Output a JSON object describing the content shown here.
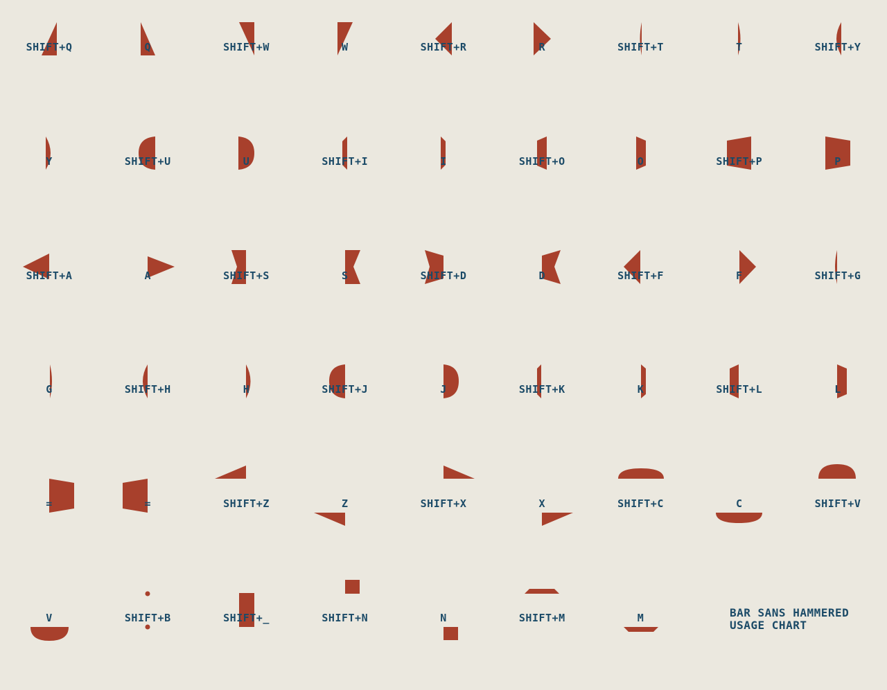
{
  "colors": {
    "background": "#ebe8df",
    "glyph_fill": "#a8402c",
    "label_text": "#1b4a67"
  },
  "title": {
    "line1": "BAR SANS HAMMERED",
    "line2": "USAGE CHART"
  },
  "cells": [
    {
      "label": "SHIFT+Q"
    },
    {
      "label": "Q"
    },
    {
      "label": "SHIFT+W"
    },
    {
      "label": "W"
    },
    {
      "label": "SHIFT+R"
    },
    {
      "label": "R"
    },
    {
      "label": "SHIFT+T"
    },
    {
      "label": "T"
    },
    {
      "label": "SHIFT+Y"
    },
    {
      "label": "Y"
    },
    {
      "label": "SHIFT+U"
    },
    {
      "label": "U"
    },
    {
      "label": "SHIFT+I"
    },
    {
      "label": "I"
    },
    {
      "label": "SHIFT+O"
    },
    {
      "label": "O"
    },
    {
      "label": "SHIFT+P"
    },
    {
      "label": "P"
    },
    {
      "label": "SHIFT+A"
    },
    {
      "label": "A"
    },
    {
      "label": "SHIFT+S"
    },
    {
      "label": "S"
    },
    {
      "label": "SHIFT+D"
    },
    {
      "label": "D"
    },
    {
      "label": "SHIFT+F"
    },
    {
      "label": "F"
    },
    {
      "label": "SHIFT+G"
    },
    {
      "label": "G"
    },
    {
      "label": "SHIFT+H"
    },
    {
      "label": "H"
    },
    {
      "label": "SHIFT+J"
    },
    {
      "label": "J"
    },
    {
      "label": "SHIFT+K"
    },
    {
      "label": "K"
    },
    {
      "label": "SHIFT+L"
    },
    {
      "label": "L"
    },
    {
      "label": "="
    },
    {
      "label": "="
    },
    {
      "label": "SHIFT+Z"
    },
    {
      "label": "Z"
    },
    {
      "label": "SHIFT+X"
    },
    {
      "label": "X"
    },
    {
      "label": "SHIFT+C"
    },
    {
      "label": "C"
    },
    {
      "label": "SHIFT+V"
    },
    {
      "label": "V"
    },
    {
      "label": "SHIFT+B"
    },
    {
      "label": "SHIFT+_"
    },
    {
      "label": "SHIFT+N"
    },
    {
      "label": "N"
    },
    {
      "label": "SHIFT+M"
    },
    {
      "label": "M"
    }
  ]
}
